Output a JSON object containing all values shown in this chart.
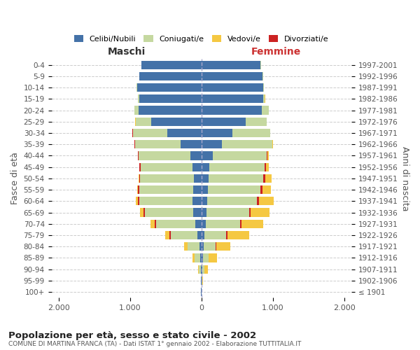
{
  "age_groups": [
    "100+",
    "95-99",
    "90-94",
    "85-89",
    "80-84",
    "75-79",
    "70-74",
    "65-69",
    "60-64",
    "55-59",
    "50-54",
    "45-49",
    "40-44",
    "35-39",
    "30-34",
    "25-29",
    "20-24",
    "15-19",
    "10-14",
    "5-9",
    "0-4"
  ],
  "birth_years": [
    "≤ 1901",
    "1902-1906",
    "1907-1911",
    "1912-1916",
    "1917-1921",
    "1922-1926",
    "1927-1931",
    "1932-1936",
    "1937-1941",
    "1942-1946",
    "1947-1951",
    "1952-1956",
    "1957-1961",
    "1962-1966",
    "1967-1971",
    "1972-1976",
    "1977-1981",
    "1982-1986",
    "1987-1991",
    "1992-1996",
    "1997-2001"
  ],
  "male": {
    "celibi": [
      2,
      3,
      8,
      15,
      30,
      55,
      90,
      110,
      120,
      110,
      105,
      120,
      155,
      290,
      480,
      700,
      880,
      870,
      900,
      870,
      840
    ],
    "coniugati": [
      2,
      5,
      25,
      80,
      160,
      370,
      540,
      680,
      750,
      760,
      750,
      730,
      720,
      640,
      480,
      220,
      60,
      15,
      5,
      3,
      2
    ],
    "vedovi": [
      0,
      2,
      10,
      25,
      50,
      60,
      55,
      40,
      25,
      15,
      8,
      5,
      3,
      2,
      1,
      2,
      2,
      1,
      0,
      0,
      0
    ],
    "divorziati": [
      0,
      0,
      1,
      2,
      5,
      20,
      25,
      25,
      20,
      18,
      15,
      18,
      10,
      5,
      3,
      2,
      1,
      0,
      0,
      0,
      0
    ]
  },
  "female": {
    "nubili": [
      2,
      5,
      10,
      18,
      30,
      40,
      60,
      70,
      80,
      90,
      100,
      115,
      155,
      290,
      430,
      620,
      850,
      870,
      870,
      860,
      830
    ],
    "coniugate": [
      2,
      8,
      30,
      80,
      170,
      310,
      480,
      600,
      700,
      740,
      770,
      770,
      760,
      700,
      530,
      290,
      90,
      20,
      5,
      3,
      2
    ],
    "vedove": [
      1,
      10,
      50,
      120,
      200,
      300,
      310,
      270,
      200,
      120,
      80,
      40,
      15,
      5,
      3,
      3,
      2,
      1,
      0,
      0,
      0
    ],
    "divorziate": [
      0,
      0,
      1,
      2,
      5,
      15,
      18,
      18,
      30,
      25,
      30,
      20,
      10,
      5,
      4,
      3,
      2,
      0,
      0,
      0,
      0
    ]
  },
  "colors": {
    "celibi": "#4472a8",
    "coniugati": "#c5d8a0",
    "vedovi": "#f5c842",
    "divorziati": "#cc2222"
  },
  "xlim": 2100,
  "title1": "Popolazione per età, sesso e stato civile - 2002",
  "title2": "COMUNE DI MARTINA FRANCA (TA) - Dati ISTAT 1° gennaio 2002 - Elaborazione TUTTITALIA.IT",
  "ylabel": "Fasce di età",
  "ylabel2": "Anni di nascita",
  "xlabel_left": "Maschi",
  "xlabel_right": "Femmine",
  "legend_labels": [
    "Celibi/Nubili",
    "Coniugati/e",
    "Vedovi/e",
    "Divorziati/e"
  ],
  "xtick_vals": [
    -2000,
    -1000,
    0,
    1000,
    2000
  ],
  "xtick_labels": [
    "2.000",
    "1.000",
    "0",
    "1.000",
    "2.000"
  ]
}
